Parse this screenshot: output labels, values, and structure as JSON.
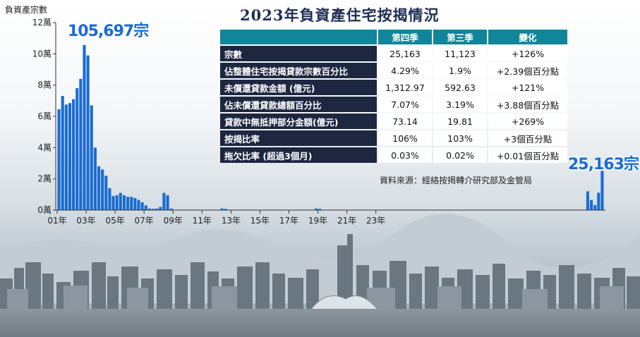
{
  "chart_data": {
    "type": "bar",
    "title": "2023年負資產住宅按揭情況",
    "ylabel": "負資產宗數",
    "ylim": [
      0,
      120000
    ],
    "y_ticks": [
      "0萬",
      "2萬",
      "4萬",
      "6萬",
      "8萬",
      "10萬",
      "12萬"
    ],
    "x_ticks": [
      "01年",
      "03年",
      "05年",
      "07年",
      "09年",
      "11年",
      "13年",
      "15年",
      "17年",
      "19年",
      "21年",
      "23年"
    ],
    "series": [
      {
        "color": "#1a6bd1",
        "values": [
          64500,
          73000,
          67500,
          68500,
          71000,
          78000,
          84000,
          105697,
          99000,
          67000,
          40000,
          28000,
          26000,
          22000,
          14000,
          9000,
          9500,
          11000,
          9500,
          8500,
          8500,
          7700,
          6500,
          5000,
          3000,
          1000,
          800,
          1000,
          2000,
          11000,
          9500,
          1000,
          0,
          0,
          0,
          0,
          0,
          0,
          0,
          0,
          0,
          0,
          0,
          0,
          0,
          1000,
          800,
          0,
          0,
          0,
          0,
          0,
          0,
          0,
          0,
          0,
          0,
          0,
          0,
          0,
          0,
          0,
          0,
          0,
          0,
          0,
          0,
          0,
          0,
          0,
          0,
          1000,
          800,
          0,
          0,
          0,
          0,
          0,
          0,
          0,
          0,
          0,
          0,
          0,
          0,
          0,
          0,
          0,
          0,
          0,
          0,
          0,
          0,
          0,
          0,
          0,
          0,
          0,
          0,
          0,
          0,
          0,
          0,
          0,
          0,
          0,
          0,
          0,
          0,
          0,
          0,
          0,
          0,
          0,
          0,
          0,
          0,
          0,
          0,
          0,
          0,
          0,
          0,
          0,
          0,
          0,
          0,
          0,
          0,
          0,
          0,
          0,
          0,
          0,
          0,
          0,
          0,
          0,
          0,
          0,
          0,
          0,
          0,
          0,
          0,
          0,
          12000,
          6500,
          3200,
          11123,
          25163
        ]
      }
    ],
    "annotations": [
      {
        "text": "105,697宗",
        "target": "peak"
      },
      {
        "text": "25,163宗",
        "target": "last"
      }
    ]
  },
  "table": {
    "headers": [
      "",
      "第四季",
      "第三季",
      "變化"
    ],
    "rows": [
      {
        "label": "宗數",
        "q4": "25,163",
        "q3": "11,123",
        "change": "+126%"
      },
      {
        "label": "佔整體住宅按揭貸款宗數百分比",
        "q4": "4.29%",
        "q3": "1.9%",
        "change": "+2.39個百分點"
      },
      {
        "label": "未償還貸款金額 (億元)",
        "q4": "1,312.97",
        "q3": "592.63",
        "change": "+121%"
      },
      {
        "label": "佔未償還貸款總額百分比",
        "q4": "7.07%",
        "q3": "3.19%",
        "change": "+3.88個百分點"
      },
      {
        "label": "貸款中無抵押部分金額(億元)",
        "q4": "73.14",
        "q3": "19.81",
        "change": "+269%"
      },
      {
        "label": "按揭比率",
        "q4": "106%",
        "q3": "103%",
        "change": "+3個百分點"
      },
      {
        "label": "拖欠比率 (超過3個月)",
        "q4": "0.03%",
        "q3": "0.02%",
        "change": "+0.01個百分點"
      }
    ]
  },
  "source": "資料來源：經絡按揭轉介研究部及金管局",
  "colors": {
    "bar": "#1a6bd1",
    "header": "#11859a",
    "row_header": "#1d2740",
    "title": "#1f2e55"
  }
}
